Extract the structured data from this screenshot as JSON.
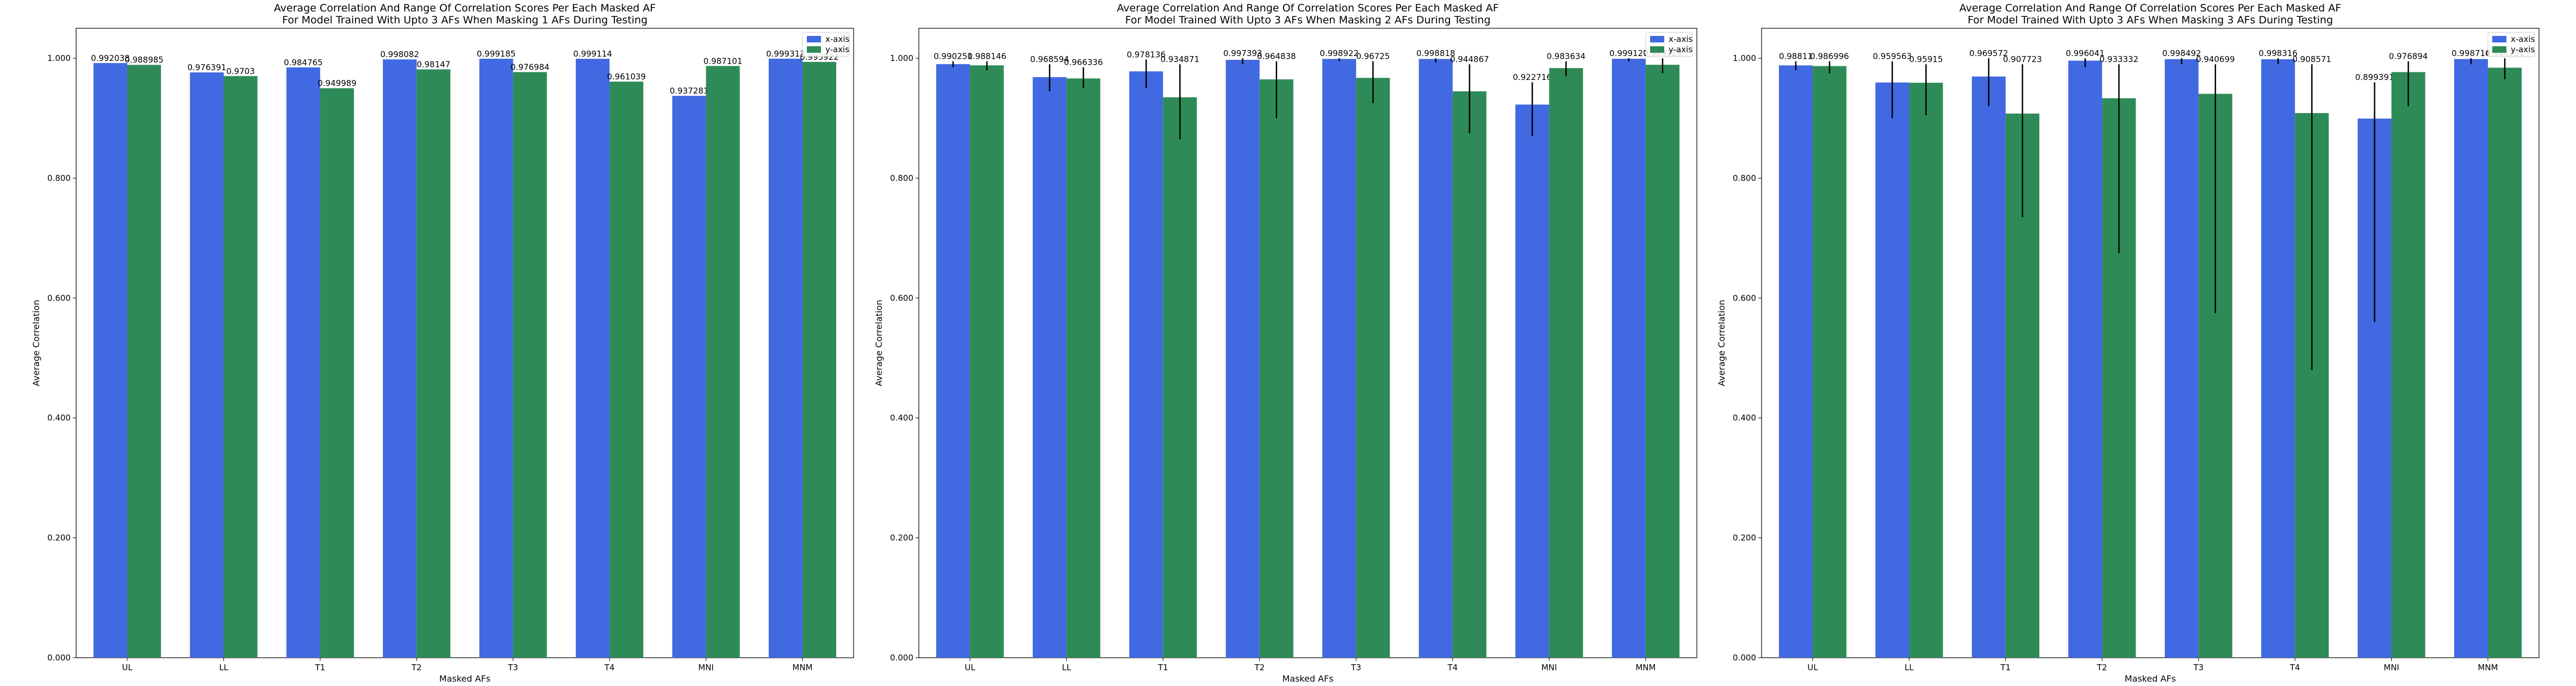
{
  "chart_data": [
    {
      "type": "bar",
      "title": "Average Correlation And Range Of Correlation Scores Per Each Masked AF\nFor Model Trained With Upto 3 AFs When Masking 1 AFs During Testing",
      "xlabel": "Masked AFs",
      "ylabel": "Average Correlation",
      "ylim": [
        0,
        1.05
      ],
      "yticks": [
        "0.000",
        "0.200",
        "0.400",
        "0.600",
        "0.800",
        "1.000"
      ],
      "categories": [
        "UL",
        "LL",
        "T1",
        "T2",
        "T3",
        "T4",
        "MNI",
        "MNM"
      ],
      "legend_position": "top-right",
      "series": [
        {
          "name": "x-axis",
          "color": "#4169e1",
          "values": [
            0.992038,
            0.976391,
            0.984765,
            0.998082,
            0.999185,
            0.999114,
            0.937281,
            0.999313
          ],
          "labels": [
            "0.992038",
            "0.976391",
            "0.984765",
            "0.998082",
            "0.999185",
            "0.999114",
            "0.937281",
            "0.999313"
          ],
          "err_low": [
            null,
            null,
            null,
            null,
            null,
            null,
            null,
            null
          ],
          "err_high": [
            null,
            null,
            null,
            null,
            null,
            null,
            null,
            null
          ]
        },
        {
          "name": "y-axis",
          "color": "#2e8b57",
          "values": [
            0.988985,
            0.9703,
            0.949989,
            0.98147,
            0.976984,
            0.961039,
            0.987101,
            0.993922
          ],
          "labels": [
            "0.988985",
            "0.9703",
            "0.949989",
            "0.98147",
            "0.976984",
            "0.961039",
            "0.987101",
            "0.993922"
          ],
          "err_low": [
            null,
            null,
            null,
            null,
            null,
            null,
            null,
            null
          ],
          "err_high": [
            null,
            null,
            null,
            null,
            null,
            null,
            null,
            null
          ]
        }
      ]
    },
    {
      "type": "bar",
      "title": "Average Correlation And Range Of Correlation Scores Per Each Masked AF\nFor Model Trained With Upto 3 AFs When Masking 2 AFs During Testing",
      "xlabel": "Masked AFs",
      "ylabel": "Average Correlation",
      "ylim": [
        0,
        1.05
      ],
      "yticks": [
        "0.000",
        "0.200",
        "0.400",
        "0.600",
        "0.800",
        "1.000"
      ],
      "categories": [
        "UL",
        "LL",
        "T1",
        "T2",
        "T3",
        "T4",
        "MNI",
        "MNM"
      ],
      "legend_position": "top-right",
      "series": [
        {
          "name": "x-axis",
          "color": "#4169e1",
          "values": [
            0.990251,
            0.968594,
            0.978136,
            0.997393,
            0.998922,
            0.998818,
            0.922716,
            0.999127
          ],
          "labels": [
            "0.990251",
            "0.968594",
            "0.978136",
            "0.997393",
            "0.998922",
            "0.998818",
            "0.922716",
            "0.999127"
          ],
          "err_low": [
            0.985,
            0.945,
            0.95,
            0.99,
            0.995,
            0.993,
            0.87,
            0.995
          ],
          "err_high": [
            0.995,
            0.99,
            0.998,
            1.0,
            1.0,
            1.0,
            0.96,
            1.0
          ]
        },
        {
          "name": "y-axis",
          "color": "#2e8b57",
          "values": [
            0.988146,
            0.966336,
            0.934871,
            0.964838,
            0.96725,
            0.944867,
            0.983634,
            0.989128
          ],
          "labels": [
            "0.988146",
            "0.966336",
            "0.934871",
            "0.964838",
            "0.96725",
            "0.944867",
            "0.983634",
            "0.989128"
          ],
          "err_low": [
            0.98,
            0.95,
            0.865,
            0.9,
            0.925,
            0.875,
            0.97,
            0.975
          ],
          "err_high": [
            0.995,
            0.985,
            0.99,
            0.995,
            0.995,
            0.99,
            0.995,
            1.0
          ]
        }
      ]
    },
    {
      "type": "bar",
      "title": "Average Correlation And Range Of Correlation Scores Per Each Masked AF\nFor Model Trained With Upto 3 AFs When Masking 3 AFs During Testing",
      "xlabel": "Masked AFs",
      "ylabel": "Average Correlation",
      "ylim": [
        0,
        1.05
      ],
      "yticks": [
        "0.000",
        "0.200",
        "0.400",
        "0.600",
        "0.800",
        "1.000"
      ],
      "categories": [
        "UL",
        "LL",
        "T1",
        "T2",
        "T3",
        "T4",
        "MNI",
        "MNM"
      ],
      "legend_position": "top-right",
      "series": [
        {
          "name": "x-axis",
          "color": "#4169e1",
          "values": [
            0.98811,
            0.959563,
            0.969572,
            0.996041,
            0.998492,
            0.998316,
            0.899391,
            0.998714
          ],
          "labels": [
            "0.98811",
            "0.959563",
            "0.969572",
            "0.996041",
            "0.998492",
            "0.998316",
            "0.899391",
            "0.998714"
          ],
          "err_low": [
            0.98,
            0.9,
            0.92,
            0.985,
            0.99,
            0.99,
            0.56,
            0.99
          ],
          "err_high": [
            0.995,
            0.995,
            1.0,
            1.0,
            1.0,
            1.0,
            0.96,
            1.0
          ]
        },
        {
          "name": "y-axis",
          "color": "#2e8b57",
          "values": [
            0.986996,
            0.95915,
            0.907723,
            0.933332,
            0.940699,
            0.908571,
            0.976894,
            0.984231
          ],
          "labels": [
            "0.986996",
            "0.95915",
            "0.907723",
            "0.933332",
            "0.940699",
            "0.908571",
            "0.976894",
            "0.984231"
          ],
          "err_low": [
            0.975,
            0.905,
            0.735,
            0.675,
            0.575,
            0.48,
            0.92,
            0.965
          ],
          "err_high": [
            0.995,
            0.99,
            0.99,
            0.99,
            0.99,
            0.99,
            0.995,
            1.0
          ]
        }
      ]
    }
  ]
}
